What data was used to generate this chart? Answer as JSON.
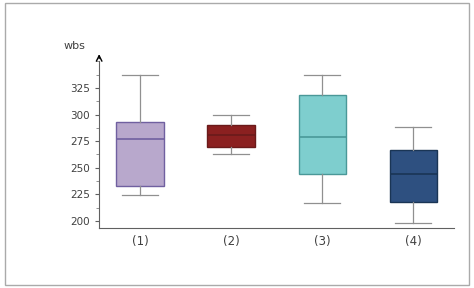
{
  "boxes": [
    {
      "label": "(1)",
      "whisker_low": 224,
      "whisker_high": 337,
      "q1": 233,
      "median": 277,
      "q3": 293,
      "face_color": "#b8a8cc",
      "edge_color": "#7060a0"
    },
    {
      "label": "(2)",
      "whisker_low": 263,
      "whisker_high": 300,
      "q1": 270,
      "median": 281,
      "q3": 290,
      "face_color": "#8b2020",
      "edge_color": "#6a1a1a"
    },
    {
      "label": "(3)",
      "whisker_low": 217,
      "whisker_high": 337,
      "q1": 244,
      "median": 279,
      "q3": 318,
      "face_color": "#7ecece",
      "edge_color": "#4a9898"
    },
    {
      "label": "(4)",
      "whisker_low": 198,
      "whisker_high": 288,
      "q1": 218,
      "median": 244,
      "q3": 267,
      "face_color": "#2e5080",
      "edge_color": "#1a3555"
    }
  ],
  "ylabel": "wbs",
  "ylim": [
    193,
    350
  ],
  "yticks": [
    200,
    225,
    250,
    275,
    300,
    325
  ],
  "box_width": 0.52,
  "positions": [
    1,
    2,
    3,
    4
  ],
  "plot_bg": "#ffffff",
  "figure_bg": "#ffffff",
  "whisker_color": "#909090",
  "cap_color": "#909090",
  "border_color": "#aaaaaa"
}
